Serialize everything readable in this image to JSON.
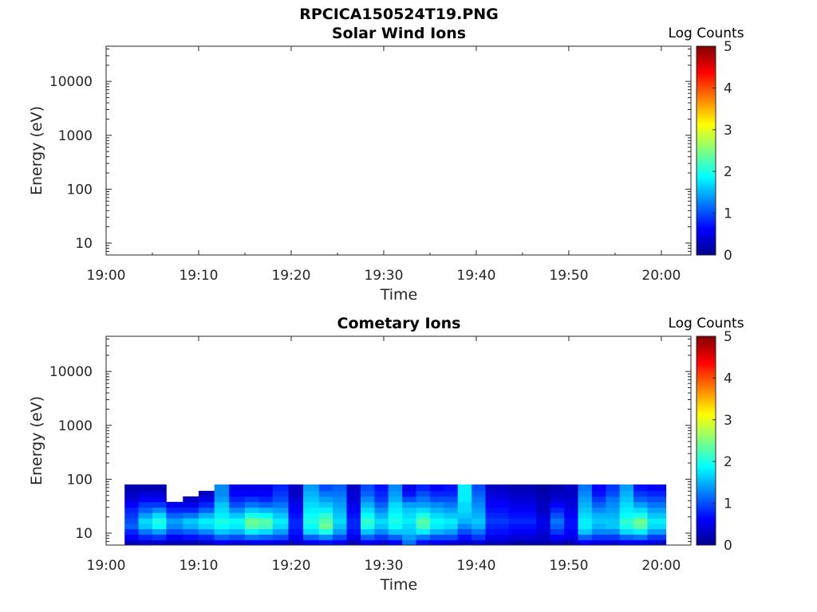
{
  "figure_title": "RPCICA150524T19.PNG",
  "colors": {
    "axis": "#262626",
    "background": "#ffffff"
  },
  "chart_data": [
    {
      "type": "heatmap",
      "title": "Solar Wind Ions",
      "xlabel": "Time",
      "ylabel": "Energy (eV)",
      "y_scale": "log",
      "ylim": [
        6,
        45000
      ],
      "x_tick_labels": [
        "19:00",
        "19:10",
        "19:20",
        "19:30",
        "19:40",
        "19:50",
        "20:00"
      ],
      "y_tick_labels": [
        "10",
        "100",
        "1000",
        "10000"
      ],
      "colorbar": {
        "label": "Log Counts",
        "range": [
          0,
          5
        ],
        "tick_labels": [
          "0",
          "1",
          "2",
          "3",
          "4",
          "5"
        ],
        "colormap": "jet"
      },
      "cells": []
    },
    {
      "type": "heatmap",
      "title": "Cometary Ions",
      "xlabel": "Time",
      "ylabel": "Energy (eV)",
      "y_scale": "log",
      "ylim": [
        6,
        45000
      ],
      "x_tick_labels": [
        "19:00",
        "19:10",
        "19:20",
        "19:30",
        "19:40",
        "19:50",
        "20:00"
      ],
      "y_tick_labels": [
        "10",
        "100",
        "1000",
        "10000"
      ],
      "colorbar": {
        "label": "Log Counts",
        "range": [
          0,
          5
        ],
        "tick_labels": [
          "0",
          "1",
          "2",
          "3",
          "4",
          "5"
        ],
        "colormap": "jet"
      },
      "energy_bands_eV": [
        6,
        7.5,
        9.5,
        12,
        15,
        19,
        24,
        30,
        38,
        48,
        61,
        80
      ],
      "time_bins": [
        {
          "t0": "19:02",
          "t1": "19:03.5",
          "values": [
            0.3,
            0.6,
            0.8,
            1.1,
            1.0,
            0.9,
            0.8,
            0.6,
            0.4,
            0.3,
            0.2
          ]
        },
        {
          "t0": "19:03.5",
          "t1": "19:05",
          "values": [
            0.4,
            0.8,
            1.2,
            1.6,
            1.7,
            1.4,
            1.1,
            0.9,
            0.6,
            0.4,
            0.2
          ]
        },
        {
          "t0": "19:05",
          "t1": "19:06.5",
          "values": [
            0.4,
            0.9,
            1.4,
            1.9,
            2.0,
            1.7,
            1.3,
            0.9,
            0.6,
            0.4,
            0.2
          ]
        },
        {
          "t0": "19:06.5",
          "t1": "19:08.3",
          "values": [
            0.3,
            0.6,
            1.0,
            1.3,
            1.4,
            1.1,
            0.8,
            0.5,
            null,
            null,
            null
          ]
        },
        {
          "t0": "19:08.3",
          "t1": "19:10",
          "values": [
            0.3,
            0.7,
            1.1,
            1.5,
            1.6,
            1.2,
            0.8,
            0.5,
            0.3,
            null,
            null
          ]
        },
        {
          "t0": "19:10",
          "t1": "19:11.7",
          "values": [
            0.4,
            0.8,
            1.3,
            1.7,
            1.8,
            1.5,
            1.1,
            0.8,
            0.5,
            0.3,
            null
          ]
        },
        {
          "t0": "19:11.7",
          "t1": "19:13.3",
          "values": [
            0.6,
            1.1,
            1.6,
            1.9,
            2.0,
            1.8,
            1.7,
            1.6,
            1.4,
            1.3,
            1.3
          ]
        },
        {
          "t0": "19:13.3",
          "t1": "19:15",
          "values": [
            0.5,
            1.0,
            1.5,
            1.8,
            1.9,
            1.6,
            1.3,
            1.0,
            0.8,
            0.6,
            0.5
          ]
        },
        {
          "t0": "19:15",
          "t1": "19:16.5",
          "values": [
            0.6,
            1.2,
            1.8,
            2.3,
            2.4,
            2.0,
            1.6,
            1.2,
            0.9,
            0.6,
            0.5
          ]
        },
        {
          "t0": "19:16.5",
          "t1": "19:18",
          "values": [
            0.6,
            1.1,
            1.7,
            2.2,
            2.3,
            1.9,
            1.5,
            1.1,
            0.8,
            0.6,
            0.5
          ]
        },
        {
          "t0": "19:18",
          "t1": "19:19.7",
          "values": [
            0.5,
            1.0,
            1.4,
            1.7,
            1.8,
            1.6,
            1.4,
            1.2,
            1.0,
            0.9,
            0.8
          ]
        },
        {
          "t0": "19:19.7",
          "t1": "19:21.3",
          "values": [
            0.4,
            0.6,
            0.7,
            0.8,
            0.8,
            0.7,
            0.6,
            0.5,
            0.4,
            0.3,
            0.3
          ]
        },
        {
          "t0": "19:21.3",
          "t1": "19:23",
          "values": [
            0.6,
            1.1,
            1.7,
            1.9,
            2.0,
            1.9,
            1.8,
            1.7,
            1.6,
            1.5,
            1.4
          ]
        },
        {
          "t0": "19:23",
          "t1": "19:24.5",
          "values": [
            0.7,
            1.3,
            2.0,
            2.4,
            2.3,
            2.1,
            1.8,
            1.6,
            1.4,
            1.2,
            1.0
          ]
        },
        {
          "t0": "19:24.5",
          "t1": "19:26",
          "values": [
            0.6,
            1.0,
            1.4,
            1.6,
            1.7,
            1.6,
            1.5,
            1.4,
            1.3,
            1.2,
            1.1
          ]
        },
        {
          "t0": "19:26",
          "t1": "19:27.5",
          "values": [
            0.3,
            0.5,
            0.7,
            0.8,
            0.8,
            0.7,
            0.6,
            0.5,
            0.4,
            0.4,
            0.3
          ]
        },
        {
          "t0": "19:27.5",
          "t1": "19:29",
          "values": [
            0.6,
            1.1,
            1.6,
            2.0,
            2.1,
            1.9,
            1.7,
            1.5,
            1.3,
            1.1,
            1.0
          ]
        },
        {
          "t0": "19:29",
          "t1": "19:30.5",
          "values": [
            0.5,
            0.9,
            1.3,
            1.6,
            1.7,
            1.5,
            1.3,
            1.1,
            0.9,
            0.8,
            0.7
          ]
        },
        {
          "t0": "19:30.5",
          "t1": "19:32",
          "values": [
            0.6,
            1.1,
            1.6,
            1.9,
            2.0,
            1.9,
            1.8,
            1.7,
            1.5,
            1.4,
            1.3
          ]
        },
        {
          "t0": "19:32",
          "t1": "19:33.5",
          "values": [
            1.2,
            1.4,
            1.6,
            1.7,
            1.8,
            1.7,
            1.6,
            1.4,
            1.0,
            0.7,
            0.5
          ]
        },
        {
          "t0": "19:33.5",
          "t1": "19:35",
          "values": [
            0.7,
            1.2,
            1.8,
            2.2,
            2.3,
            2.0,
            1.7,
            1.4,
            1.2,
            1.0,
            0.8
          ]
        },
        {
          "t0": "19:35",
          "t1": "19:36.5",
          "values": [
            0.6,
            1.0,
            1.5,
            1.8,
            1.9,
            1.7,
            1.5,
            1.3,
            1.0,
            0.8,
            0.6
          ]
        },
        {
          "t0": "19:36.5",
          "t1": "19:38",
          "values": [
            0.5,
            1.0,
            1.4,
            1.7,
            1.8,
            1.6,
            1.4,
            1.2,
            1.0,
            0.8,
            0.7
          ]
        },
        {
          "t0": "19:38",
          "t1": "19:39.5",
          "values": [
            0.4,
            0.7,
            1.0,
            1.3,
            1.5,
            1.6,
            1.7,
            1.7,
            1.8,
            1.8,
            1.8
          ]
        },
        {
          "t0": "19:39.5",
          "t1": "19:41",
          "values": [
            0.5,
            0.9,
            1.2,
            1.5,
            1.6,
            1.5,
            1.4,
            1.3,
            1.2,
            1.1,
            1.0
          ]
        },
        {
          "t0": "19:41",
          "t1": "19:43.5",
          "values": [
            0.3,
            0.5,
            0.7,
            0.8,
            0.9,
            0.8,
            0.7,
            0.6,
            0.5,
            0.4,
            0.3
          ]
        },
        {
          "t0": "19:43.5",
          "t1": "19:46.5",
          "values": [
            0.2,
            0.4,
            0.6,
            0.7,
            0.8,
            0.7,
            0.6,
            0.5,
            0.4,
            0.3,
            0.2
          ]
        },
        {
          "t0": "19:46.5",
          "t1": "19:48",
          "values": [
            0.2,
            0.3,
            0.4,
            0.5,
            0.5,
            0.4,
            0.3,
            0.3,
            0.2,
            0.2,
            0.1
          ]
        },
        {
          "t0": "19:48",
          "t1": "19:49.5",
          "values": [
            0.3,
            0.6,
            0.9,
            1.1,
            1.2,
            1.0,
            0.8,
            0.6,
            0.4,
            0.3,
            0.2
          ]
        },
        {
          "t0": "19:49.5",
          "t1": "19:51",
          "values": [
            0.3,
            0.5,
            0.6,
            0.7,
            0.7,
            0.6,
            0.5,
            0.4,
            0.4,
            0.3,
            0.3
          ]
        },
        {
          "t0": "19:51",
          "t1": "19:52.5",
          "values": [
            0.6,
            1.1,
            1.6,
            1.8,
            1.8,
            1.7,
            1.6,
            1.5,
            1.4,
            1.3,
            1.2
          ]
        },
        {
          "t0": "19:52.5",
          "t1": "19:54",
          "values": [
            0.5,
            0.9,
            1.3,
            1.5,
            1.6,
            1.5,
            1.3,
            1.1,
            0.9,
            0.7,
            0.6
          ]
        },
        {
          "t0": "19:54",
          "t1": "19:55.5",
          "values": [
            0.5,
            0.9,
            1.3,
            1.6,
            1.6,
            1.5,
            1.4,
            1.3,
            1.2,
            1.0,
            0.9
          ]
        },
        {
          "t0": "19:55.5",
          "t1": "19:57",
          "values": [
            0.6,
            1.1,
            1.7,
            2.0,
            2.1,
            1.9,
            1.8,
            1.7,
            1.6,
            1.5,
            1.4
          ]
        },
        {
          "t0": "19:57",
          "t1": "19:58.5",
          "values": [
            0.6,
            1.2,
            1.8,
            2.3,
            2.4,
            2.0,
            1.7,
            1.4,
            1.1,
            0.9,
            0.7
          ]
        },
        {
          "t0": "19:58.5",
          "t1": "20:00.5",
          "values": [
            0.5,
            0.9,
            1.4,
            1.7,
            1.8,
            1.6,
            1.4,
            1.2,
            1.0,
            0.8,
            0.6
          ]
        }
      ]
    }
  ]
}
